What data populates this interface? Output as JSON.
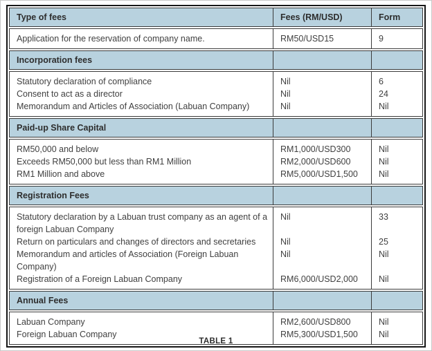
{
  "colors": {
    "header_bg": "#b8d2df",
    "inner_border": "#3a3a3a",
    "outer_border": "#161616",
    "text": "#3f3f3f"
  },
  "table": {
    "columns": [
      "Type of fees",
      "Fees (RM/USD)",
      "Form"
    ],
    "sections": [
      {
        "header": null,
        "rows": [
          {
            "label": "Application for the reservation of company name.",
            "fee": "RM50/USD15",
            "form": "9"
          }
        ]
      },
      {
        "header": "Incorporation fees",
        "rows": [
          {
            "label": "Statutory declaration of compliance",
            "fee": "Nil",
            "form": "6"
          },
          {
            "label": "Consent to act as a director",
            "fee": "Nil",
            "form": "24"
          },
          {
            "label": "Memorandum and Articles of Association (Labuan Company)",
            "fee": "Nil",
            "form": "Nil"
          }
        ]
      },
      {
        "header": "Paid-up Share Capital",
        "rows": [
          {
            "label": "RM50,000 and below",
            "fee": "RM1,000/USD300",
            "form": "Nil"
          },
          {
            "label": "Exceeds RM50,000 but less than RM1 Million",
            "fee": "RM2,000/USD600",
            "form": "Nil"
          },
          {
            "label": "RM1 Million and above",
            "fee": "RM5,000/USD1,500",
            "form": "Nil"
          }
        ]
      },
      {
        "header": "Registration Fees",
        "rows": [
          {
            "label": "Statutory declaration by a Labuan trust company as an agent of a foreign Labuan Company",
            "fee": "Nil",
            "form": "33"
          },
          {
            "label": "Return on particulars and changes of directors and secretaries",
            "fee": "Nil",
            "form": "25"
          },
          {
            "label": "Memorandum and articles of Association (Foreign Labuan Company)",
            "fee": "Nil",
            "form": "Nil"
          },
          {
            "label": "Registration of a Foreign Labuan Company",
            "fee": "RM6,000/USD2,000",
            "form": "Nil"
          }
        ]
      },
      {
        "header": "Annual Fees",
        "rows": [
          {
            "label": "Labuan Company",
            "fee": "RM2,600/USD800",
            "form": "Nil"
          },
          {
            "label": "Foreign Labuan Company",
            "fee": "RM5,300/USD1,500",
            "form": "Nil"
          }
        ]
      }
    ],
    "caption": "TABLE 1"
  }
}
